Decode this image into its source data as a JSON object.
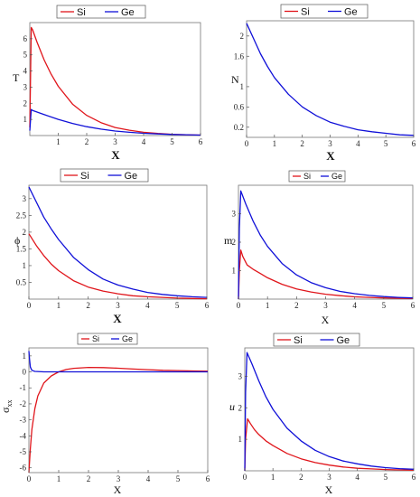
{
  "colors": {
    "Si": "#e0151b",
    "Ge": "#1010d8",
    "frame": "#777777"
  },
  "chart_data": [
    {
      "type": "line",
      "xlabel": "X",
      "ylabel": "T",
      "xlim": [
        0,
        6
      ],
      "ylim": [
        0,
        7
      ],
      "xticks": [
        1,
        2,
        3,
        4,
        5,
        6
      ],
      "yticks": [
        1,
        2,
        3,
        4,
        5,
        6
      ],
      "legend": {
        "position": "top",
        "entries": [
          "Si",
          "Ge"
        ]
      },
      "series": [
        {
          "name": "Si",
          "x": [
            0,
            0.05,
            0.1,
            0.25,
            0.5,
            0.75,
            1,
            1.5,
            2,
            2.5,
            3,
            3.5,
            4,
            4.5,
            5,
            5.5,
            6
          ],
          "y": [
            0.5,
            6.7,
            6.55,
            5.8,
            4.7,
            3.8,
            3.05,
            1.95,
            1.25,
            0.8,
            0.5,
            0.33,
            0.2,
            0.13,
            0.08,
            0.05,
            0.03
          ]
        },
        {
          "name": "Ge",
          "x": [
            0,
            0.05,
            0.1,
            0.5,
            1,
            1.5,
            2,
            2.5,
            3,
            3.5,
            4,
            4.5,
            5,
            5.5,
            6
          ],
          "y": [
            0.3,
            1.62,
            1.55,
            1.3,
            1.0,
            0.75,
            0.55,
            0.4,
            0.28,
            0.2,
            0.14,
            0.1,
            0.07,
            0.05,
            0.03
          ]
        }
      ]
    },
    {
      "type": "line",
      "xlabel": "X",
      "ylabel": "N",
      "xlim": [
        0,
        6
      ],
      "ylim": [
        0,
        2.3
      ],
      "xticks": [
        0,
        1,
        2,
        3,
        4,
        5,
        6
      ],
      "yticks": [
        0.2,
        0.6,
        1.0,
        1.6,
        2.0
      ],
      "legend": {
        "position": "top",
        "entries": [
          "Si",
          "Ge"
        ]
      },
      "series": [
        {
          "name": "Ge",
          "x": [
            0,
            0.25,
            0.5,
            0.75,
            1,
            1.5,
            2,
            2.5,
            3,
            3.5,
            4,
            4.5,
            5,
            5.5,
            6
          ],
          "y": [
            2.25,
            1.95,
            1.65,
            1.4,
            1.18,
            0.85,
            0.6,
            0.43,
            0.3,
            0.22,
            0.15,
            0.11,
            0.08,
            0.05,
            0.04
          ]
        }
      ]
    },
    {
      "type": "line",
      "xlabel": "X",
      "ylabel": "ϕ",
      "xlim": [
        0,
        6
      ],
      "ylim": [
        0,
        3.4
      ],
      "xticks": [
        0,
        1,
        2,
        3,
        4,
        5,
        6
      ],
      "yticks": [
        0.5,
        1,
        1.5,
        2,
        2.5,
        3
      ],
      "legend": {
        "position": "top",
        "entries": [
          "Si",
          "Ge"
        ]
      },
      "series": [
        {
          "name": "Si",
          "x": [
            0,
            0.25,
            0.5,
            0.75,
            1,
            1.5,
            2,
            2.5,
            3,
            3.5,
            4,
            4.5,
            5,
            5.5,
            6
          ],
          "y": [
            1.95,
            1.6,
            1.3,
            1.05,
            0.85,
            0.55,
            0.36,
            0.24,
            0.16,
            0.1,
            0.07,
            0.05,
            0.03,
            0.02,
            0.01
          ]
        },
        {
          "name": "Ge",
          "x": [
            0,
            0.25,
            0.5,
            0.75,
            1,
            1.5,
            2,
            2.5,
            3,
            3.5,
            4,
            4.5,
            5,
            5.5,
            6
          ],
          "y": [
            3.35,
            2.9,
            2.45,
            2.1,
            1.78,
            1.25,
            0.88,
            0.6,
            0.42,
            0.3,
            0.2,
            0.14,
            0.1,
            0.07,
            0.05
          ]
        }
      ]
    },
    {
      "type": "line",
      "xlabel": "X",
      "ylabel": "m",
      "xlim": [
        0,
        6
      ],
      "ylim": [
        0,
        4
      ],
      "xticks": [
        0,
        1,
        2,
        3,
        4,
        5,
        6
      ],
      "yticks": [
        1,
        2,
        3
      ],
      "legend": {
        "position": "top",
        "entries": [
          "Si",
          "Ge"
        ]
      },
      "series": [
        {
          "name": "Si",
          "x": [
            0,
            0.03,
            0.08,
            0.15,
            0.3,
            0.5,
            0.75,
            1,
            1.5,
            2,
            2.5,
            3,
            3.5,
            4,
            4.5,
            5,
            5.5,
            6
          ],
          "y": [
            0,
            1.0,
            1.72,
            1.5,
            1.2,
            1.05,
            0.9,
            0.75,
            0.52,
            0.36,
            0.25,
            0.17,
            0.12,
            0.08,
            0.06,
            0.04,
            0.03,
            0.02
          ]
        },
        {
          "name": "Ge",
          "x": [
            0,
            0.03,
            0.08,
            0.25,
            0.5,
            0.75,
            1,
            1.5,
            2,
            2.5,
            3,
            3.5,
            4,
            4.5,
            5,
            5.5,
            6
          ],
          "y": [
            0,
            2.5,
            3.8,
            3.35,
            2.75,
            2.25,
            1.85,
            1.25,
            0.85,
            0.58,
            0.4,
            0.27,
            0.19,
            0.13,
            0.09,
            0.06,
            0.04
          ]
        }
      ]
    },
    {
      "type": "line",
      "xlabel": "X",
      "ylabel": "σxx",
      "xlim": [
        0,
        6
      ],
      "ylim": [
        -6.3,
        1.5
      ],
      "xticks": [
        0,
        1,
        2,
        3,
        4,
        5,
        6
      ],
      "yticks": [
        -6,
        -5,
        -4,
        -3,
        -2,
        -1,
        0,
        1
      ],
      "legend": {
        "position": "top",
        "entries": [
          "Si",
          "Ge"
        ]
      },
      "series": [
        {
          "name": "Si",
          "x": [
            0,
            0.05,
            0.1,
            0.2,
            0.3,
            0.5,
            0.75,
            1,
            1.25,
            1.5,
            2,
            2.5,
            3,
            3.5,
            4,
            4.5,
            5,
            5.5,
            6
          ],
          "y": [
            -6.3,
            -4.8,
            -3.6,
            -2.3,
            -1.5,
            -0.7,
            -0.25,
            0.0,
            0.15,
            0.22,
            0.28,
            0.27,
            0.23,
            0.18,
            0.14,
            0.1,
            0.08,
            0.06,
            0.04
          ]
        },
        {
          "name": "Ge",
          "x": [
            0,
            0.02,
            0.05,
            0.1,
            0.2,
            0.5,
            1,
            2,
            3,
            4,
            5,
            6
          ],
          "y": [
            1.3,
            0.8,
            0.3,
            0.1,
            0.03,
            0.0,
            0.0,
            0.0,
            0.0,
            0.0,
            0.0,
            0.0
          ]
        }
      ]
    },
    {
      "type": "line",
      "xlabel": "X",
      "ylabel": "u",
      "xlim": [
        0,
        6
      ],
      "ylim": [
        0,
        3.9
      ],
      "xticks": [
        0,
        1,
        2,
        3,
        4,
        5,
        6
      ],
      "yticks": [
        1,
        2,
        3
      ],
      "legend": {
        "position": "top",
        "entries": [
          "Si",
          "Ge"
        ]
      },
      "series": [
        {
          "name": "Si",
          "x": [
            0,
            0.03,
            0.1,
            0.2,
            0.35,
            0.5,
            0.75,
            1,
            1.5,
            2,
            2.5,
            3,
            3.5,
            4,
            4.5,
            5,
            5.5,
            6
          ],
          "y": [
            0,
            1.0,
            1.65,
            1.5,
            1.3,
            1.15,
            0.95,
            0.8,
            0.55,
            0.38,
            0.26,
            0.18,
            0.12,
            0.08,
            0.06,
            0.04,
            0.03,
            0.02
          ]
        },
        {
          "name": "Ge",
          "x": [
            0,
            0.03,
            0.08,
            0.25,
            0.5,
            0.75,
            1,
            1.5,
            2,
            2.5,
            3,
            3.5,
            4,
            4.5,
            5,
            5.5,
            6
          ],
          "y": [
            0,
            2.5,
            3.75,
            3.4,
            2.85,
            2.35,
            1.95,
            1.35,
            0.95,
            0.65,
            0.45,
            0.31,
            0.22,
            0.15,
            0.1,
            0.07,
            0.05
          ]
        }
      ]
    }
  ]
}
